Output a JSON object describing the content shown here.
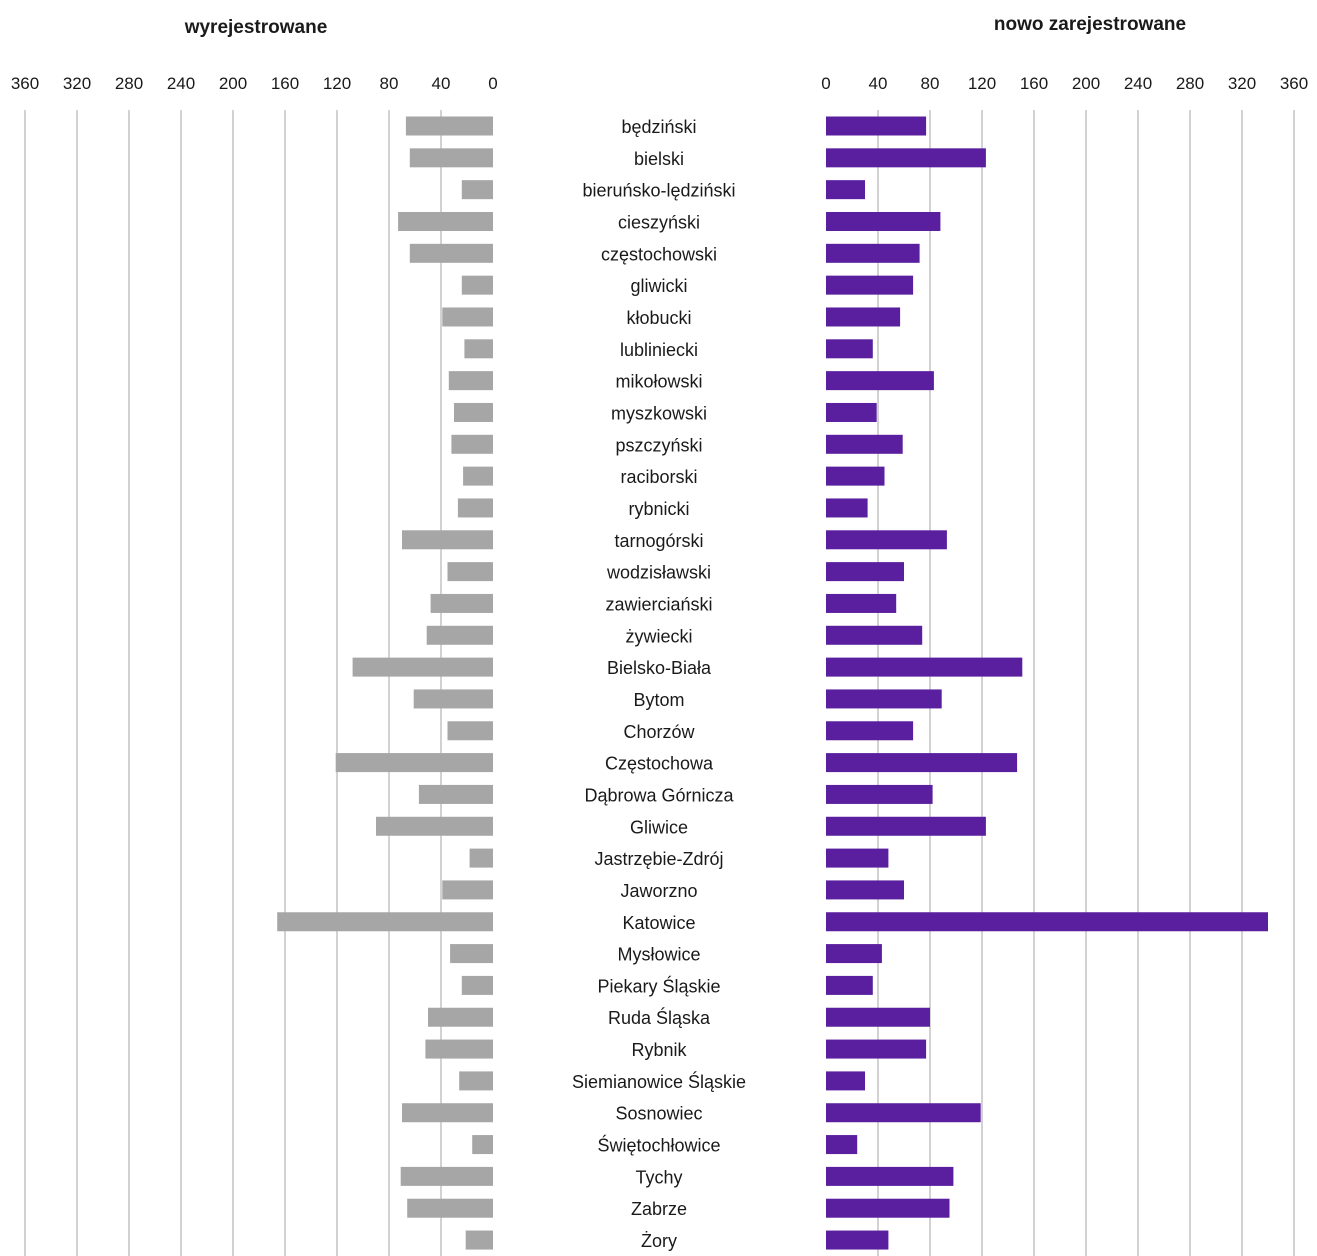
{
  "chart_data": {
    "type": "bar",
    "orientation": "horizontal",
    "layout": "butterfly",
    "categories": [
      "będziński",
      "bielski",
      "bieruńsko-lędziński",
      "cieszyński",
      "częstochowski",
      "gliwicki",
      "kłobucki",
      "lubliniecki",
      "mikołowski",
      "myszkowski",
      "pszczyński",
      "raciborski",
      "rybnicki",
      "tarnogórski",
      "wodzisławski",
      "zawierciański",
      "żywiecki",
      "Bielsko-Biała",
      "Bytom",
      "Chorzów",
      "Częstochowa",
      "Dąbrowa Górnicza",
      "Gliwice",
      "Jastrzębie-Zdrój",
      "Jaworzno",
      "Katowice",
      "Mysłowice",
      "Piekary Śląskie",
      "Ruda Śląska",
      "Rybnik",
      "Siemianowice Śląskie",
      "Sosnowiec",
      "Świętochłowice",
      "Tychy",
      "Zabrze",
      "Żory"
    ],
    "series": [
      {
        "name": "wyrejestrowane",
        "color": "#a6a6a6",
        "values": [
          67,
          64,
          24,
          73,
          64,
          24,
          39,
          22,
          34,
          30,
          32,
          23,
          27,
          70,
          35,
          48,
          51,
          108,
          61,
          35,
          121,
          57,
          90,
          18,
          39,
          166,
          33,
          24,
          50,
          52,
          26,
          70,
          16,
          71,
          66,
          21
        ]
      },
      {
        "name": "nowo zarejestrowane",
        "color": "#5a1f9e",
        "values": [
          77,
          123,
          30,
          88,
          72,
          67,
          57,
          36,
          83,
          39,
          59,
          45,
          32,
          93,
          60,
          54,
          74,
          151,
          89,
          67,
          147,
          82,
          123,
          48,
          60,
          340,
          43,
          36,
          80,
          77,
          30,
          119,
          24,
          98,
          95,
          48
        ]
      }
    ],
    "axis_ticks": [
      "0",
      "40",
      "80",
      "120",
      "160",
      "200",
      "240",
      "280",
      "320",
      "360"
    ],
    "xlim": [
      0,
      360
    ],
    "grid": true,
    "legend": "none"
  }
}
